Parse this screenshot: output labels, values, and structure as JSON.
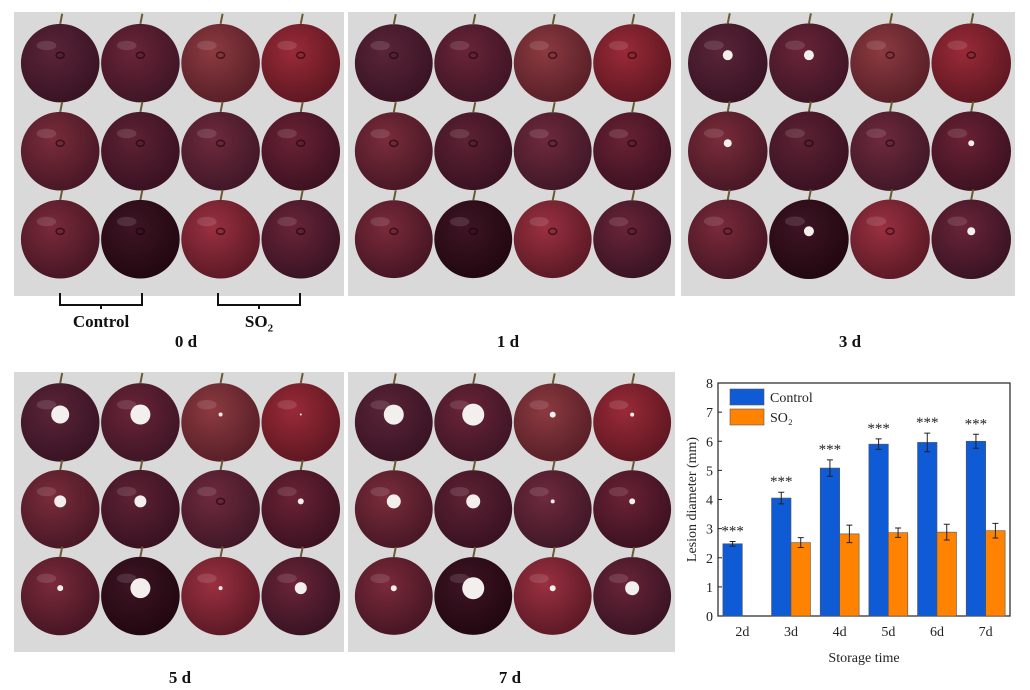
{
  "panels": [
    {
      "label": "0 d",
      "stage": 0
    },
    {
      "label": "1 d",
      "stage": 0
    },
    {
      "label": "3 d",
      "stage": 1
    },
    {
      "label": "5 d",
      "stage": 2
    },
    {
      "label": "7 d",
      "stage": 3
    }
  ],
  "group_labels": {
    "control": "Control",
    "so2_main": "SO",
    "so2_sub": "2"
  },
  "chart_data": {
    "type": "bar",
    "categories": [
      "2d",
      "3d",
      "4d",
      "5d",
      "6d",
      "7d"
    ],
    "series": [
      {
        "name": "Control",
        "color": "#0f5bd6",
        "values": [
          2.48,
          4.05,
          5.08,
          5.9,
          5.96,
          6.0
        ],
        "errors": [
          0.08,
          0.2,
          0.28,
          0.18,
          0.32,
          0.24
        ]
      },
      {
        "name": "SO2",
        "color": "#ff8300",
        "values": [
          null,
          2.52,
          2.82,
          2.86,
          2.88,
          2.93
        ],
        "errors": [
          null,
          0.17,
          0.3,
          0.16,
          0.27,
          0.25
        ]
      }
    ],
    "legend": [
      "Control",
      "SO₂"
    ],
    "significance": [
      "***",
      "***",
      "***",
      "***",
      "***",
      "***"
    ],
    "xlabel": "Storage time",
    "ylabel": "Lesion diameter (mm)",
    "ylim": [
      0,
      8
    ],
    "yticks": [
      "0",
      "1",
      "2",
      "3",
      "4",
      "5",
      "6",
      "7",
      "8"
    ],
    "legend_position": "top-left"
  }
}
